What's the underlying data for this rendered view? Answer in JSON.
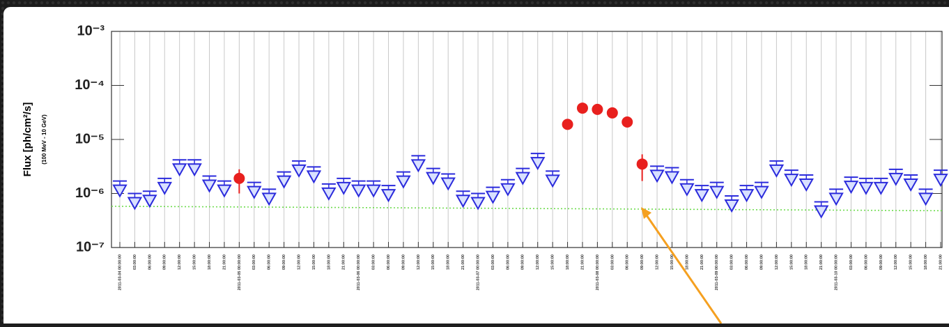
{
  "chart_data": {
    "type": "lightcurve",
    "ylabel": "Flux [ph/cm²/s]",
    "ylabel_sub": "(100 MeV - 10 GeV)",
    "log_y": true,
    "grid": true,
    "ylim": [
      1e-07,
      0.001
    ],
    "yticks": [
      {
        "value": 1e-07,
        "label": "10⁻⁷"
      },
      {
        "value": 1e-06,
        "label": "10⁻⁶"
      },
      {
        "value": 1e-05,
        "label": "10⁻⁵"
      },
      {
        "value": 0.0001,
        "label": "10⁻⁴"
      },
      {
        "value": 0.001,
        "label": "10⁻³"
      }
    ],
    "categories": [
      "2011-03-04 00:00:00",
      "03:00:00",
      "06:00:00",
      "09:00:00",
      "12:00:00",
      "15:00:00",
      "18:00:00",
      "21:00:00",
      "2011-03-05 00:00:00",
      "03:00:00",
      "06:00:00",
      "09:00:00",
      "12:00:00",
      "15:00:00",
      "18:00:00",
      "21:00:00",
      "2011-03-06 00:00:00",
      "03:00:00",
      "06:00:00",
      "09:00:00",
      "12:00:00",
      "15:00:00",
      "18:00:00",
      "21:00:00",
      "2011-03-07 00:00:00",
      "03:00:00",
      "06:00:00",
      "09:00:00",
      "12:00:00",
      "15:00:00",
      "18:00:00",
      "21:00:00",
      "2011-03-08 00:00:00",
      "03:00:00",
      "06:00:00",
      "09:00:00",
      "12:00:00",
      "15:00:00",
      "18:00:00",
      "21:00:00",
      "2011-03-09 00:00:00",
      "03:00:00",
      "06:00:00",
      "09:00:00",
      "12:00:00",
      "15:00:00",
      "18:00:00",
      "21:00:00",
      "2011-03-10 00:00:00",
      "03:00:00",
      "06:00:00",
      "09:00:00",
      "12:00:00",
      "15:00:00",
      "18:00:00",
      "21:00:00"
    ],
    "upper_limits": {
      "color": "#2b2bdc",
      "values": [
        1.7e-06,
        1e-06,
        1.1e-06,
        1.9e-06,
        4.2e-06,
        4.2e-06,
        2.1e-06,
        1.7e-06,
        null,
        1.6e-06,
        1.2e-06,
        2.5e-06,
        4e-06,
        3.1e-06,
        1.5e-06,
        1.9e-06,
        1.7e-06,
        1.7e-06,
        1.4e-06,
        2.5e-06,
        5e-06,
        2.9e-06,
        2.3e-06,
        1.1e-06,
        1e-06,
        1.3e-06,
        1.8e-06,
        2.9e-06,
        5.5e-06,
        2.6e-06,
        null,
        null,
        null,
        null,
        null,
        null,
        3.2e-06,
        3e-06,
        1.8e-06,
        1.4e-06,
        1.6e-06,
        9e-07,
        1.4e-06,
        1.6e-06,
        4e-06,
        2.7e-06,
        2.2e-06,
        7e-07,
        1.2e-06,
        2e-06,
        1.9e-06,
        1.9e-06,
        2.8e-06,
        2.2e-06,
        1.2e-06,
        2.7e-06
      ]
    },
    "detections": {
      "color": "#e8201e",
      "values": [
        null,
        null,
        null,
        null,
        null,
        null,
        null,
        null,
        1.9e-06,
        null,
        null,
        null,
        null,
        null,
        null,
        null,
        null,
        null,
        null,
        null,
        null,
        null,
        null,
        null,
        null,
        null,
        null,
        null,
        null,
        null,
        1.9e-05,
        3.8e-05,
        3.6e-05,
        3.1e-05,
        2.1e-05,
        3.5e-06,
        null,
        null,
        null,
        null,
        null,
        null,
        null,
        null,
        null,
        null,
        null,
        null,
        null,
        null,
        null,
        null,
        null,
        null,
        null,
        null
      ],
      "errors": [
        null,
        null,
        null,
        null,
        null,
        null,
        null,
        null,
        9e-07,
        null,
        null,
        null,
        null,
        null,
        null,
        null,
        null,
        null,
        null,
        null,
        null,
        null,
        null,
        null,
        null,
        null,
        null,
        null,
        null,
        null,
        2e-06,
        3e-06,
        3e-06,
        3e-06,
        2e-06,
        1.8e-06,
        null,
        null,
        null,
        null,
        null,
        null,
        null,
        null,
        null,
        null,
        null,
        null,
        null,
        null,
        null,
        null,
        null,
        null,
        null,
        null
      ]
    },
    "reference_line": {
      "color": "#6fdc4f",
      "values": [
        5.8e-07,
        4.8e-07
      ]
    }
  }
}
